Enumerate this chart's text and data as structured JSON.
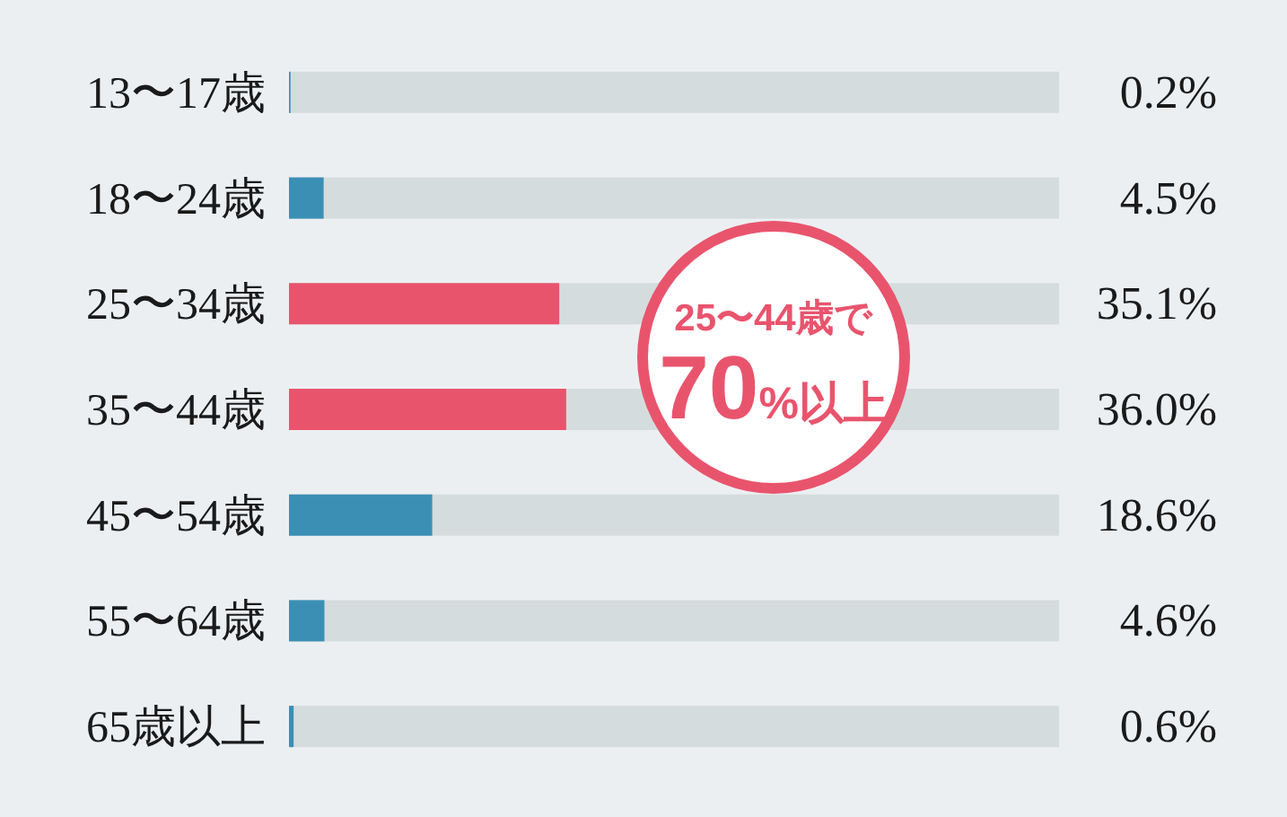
{
  "chart_data": {
    "type": "bar",
    "orientation": "horizontal",
    "categories": [
      "13〜17歳",
      "18〜24歳",
      "25〜34歳",
      "35〜44歳",
      "45〜54歳",
      "55〜64歳",
      "65歳以上"
    ],
    "values": [
      0.2,
      4.5,
      35.1,
      36.0,
      18.6,
      4.6,
      0.6
    ],
    "colors": [
      "#3b8fb5",
      "#3b8fb5",
      "#e9546d",
      "#e9546d",
      "#3b8fb5",
      "#3b8fb5",
      "#3b8fb5"
    ],
    "xlim": [
      0,
      100
    ],
    "value_labels": [
      "0.2%",
      "4.5%",
      "35.1%",
      "36.0%",
      "18.6%",
      "4.6%",
      "0.6%"
    ],
    "annotations": [
      "25〜44歳で",
      "70%以上"
    ],
    "tick_labels": "y"
  }
}
